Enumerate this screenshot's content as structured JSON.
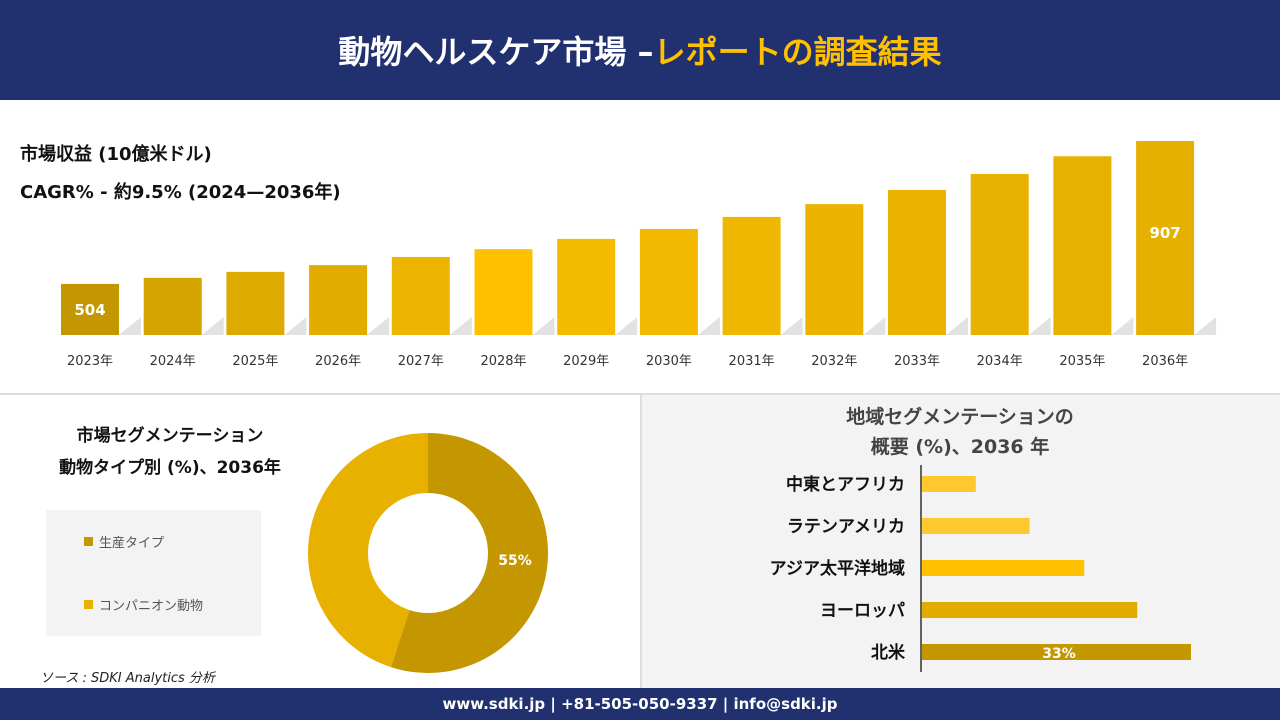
{
  "header": {
    "title_main": "動物ヘルスケア市場 –",
    "title_accent": "レポートの調査結果"
  },
  "revenue": {
    "title": "市場収益 (10億米ドル)",
    "cagr": "CAGR% - 約9.5% (2024—2036年)"
  },
  "chart_data": [
    {
      "type": "bar",
      "title": "市場収益 (10億米ドル)",
      "categories": [
        "2023年",
        "2024年",
        "2025年",
        "2026年",
        "2027年",
        "2028年",
        "2029年",
        "2030年",
        "2031年",
        "2032年",
        "2033年",
        "2034年",
        "2035年",
        "2036年"
      ],
      "values": [
        504,
        521,
        538,
        557,
        580,
        602,
        631,
        659,
        693,
        729,
        769,
        814,
        864,
        907
      ],
      "data_labels": {
        "0": "504",
        "13": "907"
      },
      "colors": [
        "#c49700",
        "#d4a300",
        "#dcaa00",
        "#e2ad00",
        "#edb500",
        "#ffc000",
        "#f5bb00",
        "#f3b900",
        "#f0b700",
        "#ecb400",
        "#ebb300",
        "#e9b200",
        "#e8b100",
        "#e6b000"
      ]
    },
    {
      "type": "pie",
      "title": "市場セグメンテーション 動物タイプ別 (%)、2036年",
      "slices": [
        {
          "name": "生産タイプ",
          "value": 55,
          "label": "55%",
          "color": "#c49700"
        },
        {
          "name": "コンパニオン動物",
          "value": 45,
          "color": "#e8b100"
        }
      ]
    },
    {
      "type": "bar",
      "orientation": "horizontal",
      "title": "地域セグメンテーションの 概要 (%)、2036 年",
      "categories": [
        "中東とアフリカ",
        "ラテンアメリカ",
        "アジア太平洋地域",
        "ヨーロッパ",
        "北米"
      ],
      "values": [
        6.6,
        13.2,
        19.9,
        26.4,
        33
      ],
      "data_labels": {
        "4": "33%"
      },
      "colors": [
        "#ffc82e",
        "#ffc82e",
        "#ffc000",
        "#e2ab00",
        "#c49700"
      ]
    }
  ],
  "segment": {
    "title_line1": "市場セグメンテーション",
    "title_line2": "動物タイプ別 (%)、2036年",
    "legend": [
      "生産タイプ",
      "コンパニオン動物"
    ]
  },
  "region": {
    "title_line1": "地域セグメンテーションの",
    "title_line2": "概要 (%)、2036 年"
  },
  "source": "ソース : SDKI Analytics 分析",
  "footer": "www.sdki.jp | +81-505-050-9337 | info@sdki.jp"
}
